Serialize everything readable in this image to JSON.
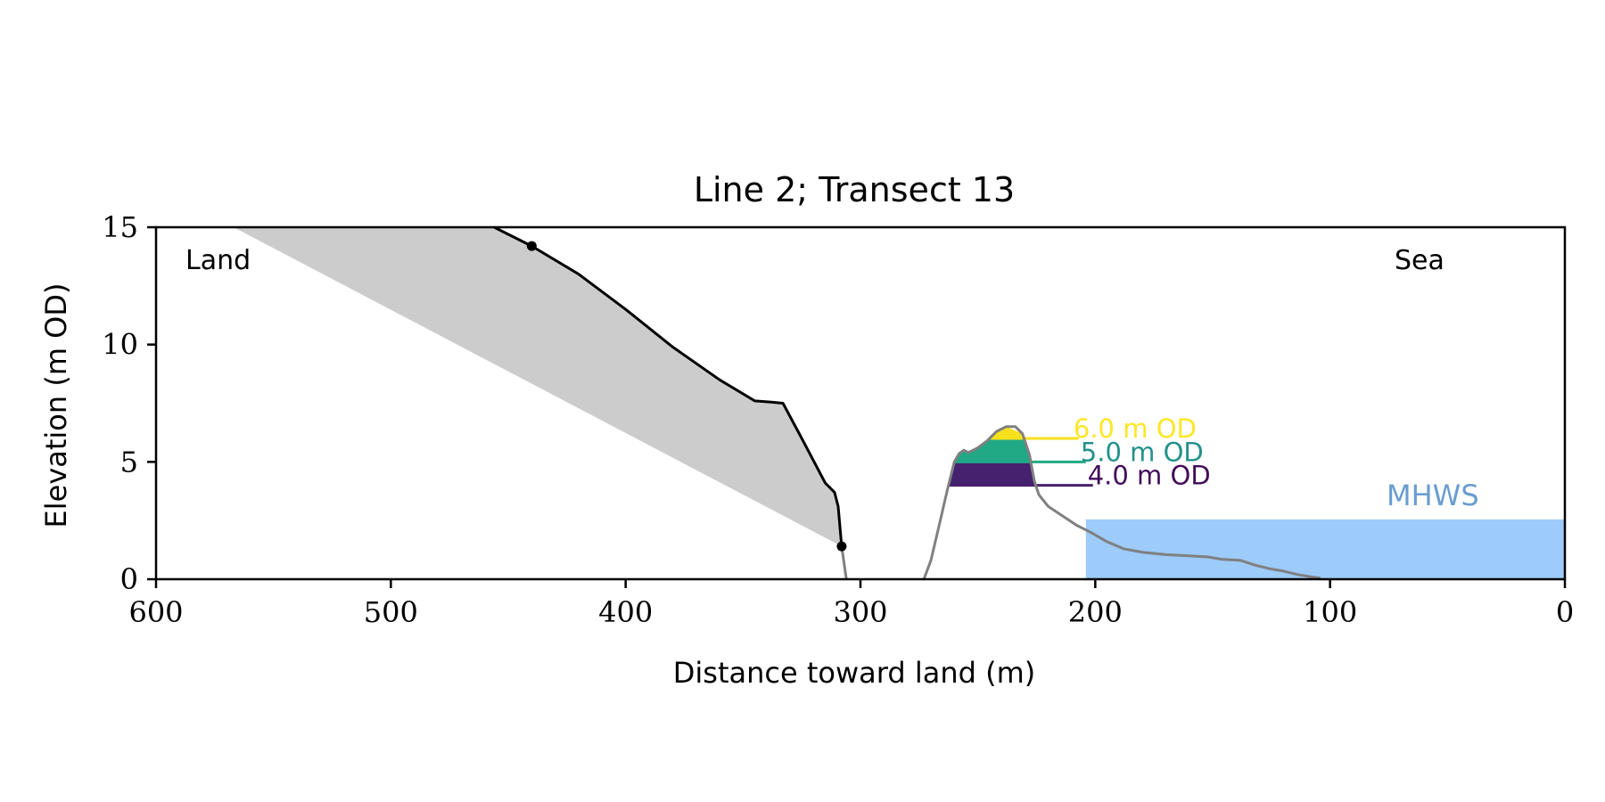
{
  "chart_data": {
    "type": "line",
    "title": "Line 2; Transect 13",
    "xlabel": "Distance toward land (m)",
    "ylabel": "Elevation (m OD)",
    "xlim": [
      600,
      0
    ],
    "ylim": [
      0,
      15
    ],
    "xticks": [
      "600",
      "500",
      "400",
      "300",
      "200",
      "100",
      "0"
    ],
    "yticks": [
      "0",
      "5",
      "10",
      "15"
    ],
    "grid": false,
    "annotations": {
      "land": "Land",
      "sea": "Sea",
      "mhws_label": "MHWS"
    },
    "mhws": {
      "level": 2.55,
      "x_from": 204,
      "x_to": 0,
      "color": "#9dcbfa",
      "label_color": "#6a9dd0"
    },
    "cliff_profile": {
      "color": "#000000",
      "x": [
        456,
        440,
        420,
        400,
        380,
        360,
        345,
        338,
        333,
        325,
        315,
        311,
        309.5,
        308
      ],
      "y": [
        15,
        14.2,
        13.0,
        11.5,
        9.9,
        8.5,
        7.6,
        7.55,
        7.5,
        6.0,
        4.1,
        3.7,
        3.1,
        1.4
      ],
      "markers": [
        {
          "x": 440,
          "y": 14.2
        },
        {
          "x": 308,
          "y": 1.4
        }
      ]
    },
    "cliff_fill": {
      "color": "#cccccc",
      "x_top": 567,
      "y_top": 15,
      "x_toe": 308,
      "y_toe": 1.4
    },
    "cliff_base": {
      "color": "#808080",
      "x": [
        308,
        306
      ],
      "y": [
        1.4,
        0
      ]
    },
    "bank_profile": {
      "color": "#808080",
      "x": [
        273,
        270,
        266,
        263,
        260,
        258,
        256,
        254,
        250,
        246,
        242,
        238,
        234,
        231,
        228,
        226,
        224,
        220,
        214,
        208,
        202,
        195,
        188,
        180,
        170,
        160,
        152,
        146,
        138,
        132,
        126,
        120,
        114,
        108,
        104
      ],
      "y": [
        0,
        0.8,
        2.5,
        3.8,
        5.0,
        5.35,
        5.5,
        5.4,
        5.6,
        5.9,
        6.3,
        6.5,
        6.5,
        6.2,
        5.3,
        4.2,
        3.6,
        3.1,
        2.7,
        2.3,
        2.0,
        1.6,
        1.3,
        1.15,
        1.05,
        1.0,
        0.95,
        0.85,
        0.8,
        0.6,
        0.45,
        0.35,
        0.2,
        0.1,
        0.05
      ]
    },
    "bands": [
      {
        "label": "4.0 m OD",
        "lower": 4.0,
        "upper": 5.0,
        "color": "#46216e",
        "line_x_to": 201
      },
      {
        "label": "5.0 m OD",
        "lower": 5.0,
        "upper": 6.0,
        "color": "#21a885",
        "line_x_to": 204
      },
      {
        "label": "6.0 m OD",
        "lower": 6.0,
        "upper": 6.5,
        "color": "#f7e11c",
        "line_x_to": 207
      }
    ],
    "band_label_colors": {
      "4.0 m OD": "#420a5a",
      "5.0 m OD": "#22918b",
      "6.0 m OD": "#fde725"
    }
  }
}
